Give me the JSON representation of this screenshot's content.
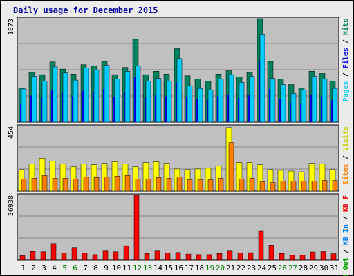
{
  "chart_data": {
    "type": "bar",
    "title": "Daily usage for December 2015",
    "days": [
      "1",
      "2",
      "3",
      "4",
      "5",
      "6",
      "7",
      "8",
      "9",
      "10",
      "11",
      "12",
      "13",
      "14",
      "15",
      "16",
      "17",
      "18",
      "19",
      "20",
      "21",
      "22",
      "23",
      "24",
      "25",
      "26",
      "27",
      "28",
      "29",
      "30",
      "31"
    ],
    "weekend_days": [
      "5",
      "6",
      "12",
      "13",
      "19",
      "20",
      "26",
      "27"
    ],
    "panels": [
      {
        "name": "hits",
        "ymax_label": "1873",
        "ymax": 1873,
        "axis_labels": [
          {
            "text": "Hits",
            "color": "#00805c"
          },
          {
            "text": "Files",
            "color": "#0000ff"
          },
          {
            "text": "Pages",
            "color": "#00c8ff"
          }
        ],
        "series": [
          {
            "name": "Hits",
            "color": "#00805c",
            "values": [
              620,
              900,
              860,
              1090,
              960,
              870,
              1040,
              1020,
              1100,
              860,
              990,
              1500,
              860,
              920,
              870,
              1330,
              840,
              780,
              740,
              870,
              930,
              820,
              900,
              1873,
              1100,
              780,
              680,
              620,
              920,
              880,
              740
            ]
          },
          {
            "name": "Files",
            "color": "#0000ff",
            "values": [
              330,
              480,
              460,
              590,
              530,
              470,
              570,
              550,
              600,
              460,
              540,
              820,
              460,
              500,
              470,
              720,
              450,
              420,
              400,
              470,
              500,
              440,
              490,
              1100,
              600,
              420,
              360,
              330,
              500,
              470,
              400
            ]
          },
          {
            "name": "Pages",
            "color": "#00ccff",
            "values": [
              600,
              830,
              740,
              1000,
              890,
              760,
              980,
              940,
              1030,
              780,
              920,
              1020,
              740,
              790,
              740,
              1150,
              660,
              610,
              580,
              780,
              860,
              720,
              830,
              1580,
              790,
              680,
              520,
              580,
              830,
              780,
              610
            ]
          }
        ]
      },
      {
        "name": "visits",
        "ymax_label": "454",
        "ymax": 454,
        "axis_labels": [
          {
            "text": "Visits",
            "color": "#cccc00"
          },
          {
            "text": "Sites",
            "color": "#ff8000"
          }
        ],
        "series": [
          {
            "name": "Visits",
            "color": "#ffff00",
            "values": [
              150,
              190,
              230,
              210,
              190,
              170,
              190,
              185,
              195,
              205,
              190,
              170,
              200,
              205,
              195,
              155,
              150,
              155,
              160,
              175,
              445,
              200,
              200,
              185,
              150,
              145,
              140,
              135,
              195,
              190,
              150
            ]
          },
          {
            "name": "Sites",
            "color": "#ff8000",
            "values": [
              85,
              90,
              110,
              90,
              90,
              85,
              100,
              95,
              100,
              105,
              110,
              85,
              85,
              95,
              90,
              100,
              80,
              80,
              80,
              90,
              340,
              85,
              90,
              65,
              60,
              70,
              70,
              70,
              70,
              75,
              75
            ]
          }
        ]
      },
      {
        "name": "kbytes",
        "ymax_label": "36938",
        "ymax": 36938,
        "axis_labels": [
          {
            "text": "KB F",
            "color": "#ff0000"
          },
          {
            "text": "KB In",
            "color": "#0080ff"
          },
          {
            "text": "KB Out",
            "color": "#00a000"
          }
        ],
        "series": [
          {
            "name": "KBytes",
            "color": "#ff0000",
            "values": [
              2600,
              5000,
              4800,
              9500,
              4200,
              7200,
              4200,
              3200,
              5200,
              4800,
              8200,
              36938,
              3800,
              5200,
              4200,
              4400,
              3500,
              3200,
              3200,
              3800,
              5200,
              4200,
              4300,
              16500,
              8500,
              3800,
              2800,
              3000,
              4700,
              4900,
              3700
            ]
          }
        ]
      }
    ]
  }
}
